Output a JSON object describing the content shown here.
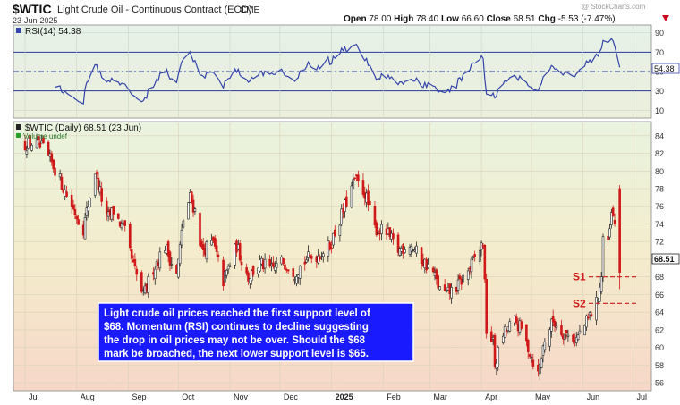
{
  "header": {
    "symbol": "$WTIC",
    "description": "Light Crude Oil - Continuous Contract (EOD)",
    "exchange": "CME",
    "date": "23-Jun-2025",
    "watermark": "@ StockCharts.com",
    "ohlc": [
      {
        "label": "Open",
        "value": "78.00"
      },
      {
        "label": "High",
        "value": "78.40"
      },
      {
        "label": "Low",
        "value": "66.60"
      },
      {
        "label": "Close",
        "value": "68.51"
      },
      {
        "label": "Chg",
        "value": "-5.53 (-7.47%)"
      }
    ],
    "change_color": "#d0021b",
    "down_arrow_icon": "triangle-down-icon"
  },
  "annotation": {
    "lines": [
      "Light crude oil prices reached the  first support level of",
      "$68.  Momentum (RSI) continues to decline suggesting",
      "the drop in oil prices may not be over.  Should the $68",
      "mark be broached, the next lower support level is $65."
    ],
    "box_color": "#1a1aff"
  },
  "chart_data": [
    {
      "type": "line",
      "panel": "RSI",
      "legend": "RSI(14) 54.38",
      "last_value": "54.38",
      "series_color": "#3344aa",
      "ylim": [
        0,
        100
      ],
      "yticks": [
        "90",
        "70",
        "50",
        "30",
        "10"
      ],
      "reference_lines": [
        70,
        50,
        30
      ],
      "points": [
        [
          "2025-06-23",
          54.38
        ]
      ]
    },
    {
      "type": "candlestick",
      "panel": "price",
      "legend": "$WTIC (Daily) 68.51 (23 Jun)",
      "volume_note": "Volume undef",
      "last_value": "68.51",
      "ylim": [
        55,
        85
      ],
      "yticks": [
        "84",
        "82",
        "80",
        "78",
        "76",
        "74",
        "72",
        "70",
        "68",
        "66",
        "64",
        "62",
        "60",
        "58",
        "56"
      ],
      "x_labels": [
        "Jul",
        "Aug",
        "Sep",
        "Oct",
        "Nov",
        "Dec",
        "2025",
        "Feb",
        "Mar",
        "Apr",
        "May",
        "Jun",
        "Jul"
      ],
      "up_color": "#222222",
      "down_color": "#d01818",
      "support_levels": [
        {
          "label": "S1",
          "value": 68
        },
        {
          "label": "S2",
          "value": 65
        }
      ],
      "support_color": "#d01818",
      "close_points": [
        [
          "2024-07-01",
          83.0
        ],
        [
          "2024-07-05",
          83.2
        ],
        [
          "2024-07-12",
          82.5
        ],
        [
          "2024-07-19",
          80.2
        ],
        [
          "2024-07-26",
          77.3
        ],
        [
          "2024-08-02",
          74.5
        ],
        [
          "2024-08-05",
          73.5
        ],
        [
          "2024-08-12",
          80.0
        ],
        [
          "2024-08-19",
          74.5
        ],
        [
          "2024-08-23",
          75.5
        ],
        [
          "2024-08-30",
          73.0
        ],
        [
          "2024-09-04",
          69.2
        ],
        [
          "2024-09-10",
          65.8
        ],
        [
          "2024-09-16",
          69.0
        ],
        [
          "2024-09-23",
          71.5
        ],
        [
          "2024-09-30",
          68.2
        ],
        [
          "2024-10-04",
          74.5
        ],
        [
          "2024-10-08",
          77.0
        ],
        [
          "2024-10-11",
          75.5
        ],
        [
          "2024-10-15",
          71.0
        ],
        [
          "2024-10-22",
          71.8
        ],
        [
          "2024-10-28",
          67.5
        ],
        [
          "2024-11-05",
          71.5
        ],
        [
          "2024-11-12",
          68.0
        ],
        [
          "2024-11-19",
          69.5
        ],
        [
          "2024-11-26",
          68.8
        ],
        [
          "2024-12-03",
          69.8
        ],
        [
          "2024-12-10",
          68.5
        ],
        [
          "2024-12-17",
          70.0
        ],
        [
          "2024-12-24",
          70.5
        ],
        [
          "2024-12-31",
          71.5
        ],
        [
          "2025-01-06",
          74.5
        ],
        [
          "2025-01-10",
          76.5
        ],
        [
          "2025-01-15",
          79.0
        ],
        [
          "2025-01-21",
          77.5
        ],
        [
          "2025-01-27",
          73.5
        ],
        [
          "2025-02-03",
          73.0
        ],
        [
          "2025-02-10",
          71.0
        ],
        [
          "2025-02-17",
          71.8
        ],
        [
          "2025-02-24",
          70.0
        ],
        [
          "2025-03-03",
          68.5
        ],
        [
          "2025-03-07",
          66.5
        ],
        [
          "2025-03-11",
          66.0
        ],
        [
          "2025-03-18",
          67.0
        ],
        [
          "2025-03-25",
          69.0
        ],
        [
          "2025-04-01",
          71.5
        ],
        [
          "2025-04-02",
          72.0
        ],
        [
          "2025-04-04",
          62.0
        ],
        [
          "2025-04-08",
          60.5
        ],
        [
          "2025-04-09",
          58.0
        ],
        [
          "2025-04-14",
          61.5
        ],
        [
          "2025-04-21",
          63.0
        ],
        [
          "2025-04-25",
          62.0
        ],
        [
          "2025-05-02",
          58.5
        ],
        [
          "2025-05-05",
          57.0
        ],
        [
          "2025-05-09",
          61.0
        ],
        [
          "2025-05-14",
          63.0
        ],
        [
          "2025-05-21",
          61.5
        ],
        [
          "2025-05-28",
          61.0
        ],
        [
          "2025-06-02",
          62.5
        ],
        [
          "2025-06-09",
          65.0
        ],
        [
          "2025-06-12",
          68.0
        ],
        [
          "2025-06-13",
          72.5
        ],
        [
          "2025-06-16",
          71.5
        ],
        [
          "2025-06-18",
          75.0
        ],
        [
          "2025-06-20",
          74.0
        ],
        [
          "2025-06-23",
          68.51
        ]
      ]
    }
  ]
}
